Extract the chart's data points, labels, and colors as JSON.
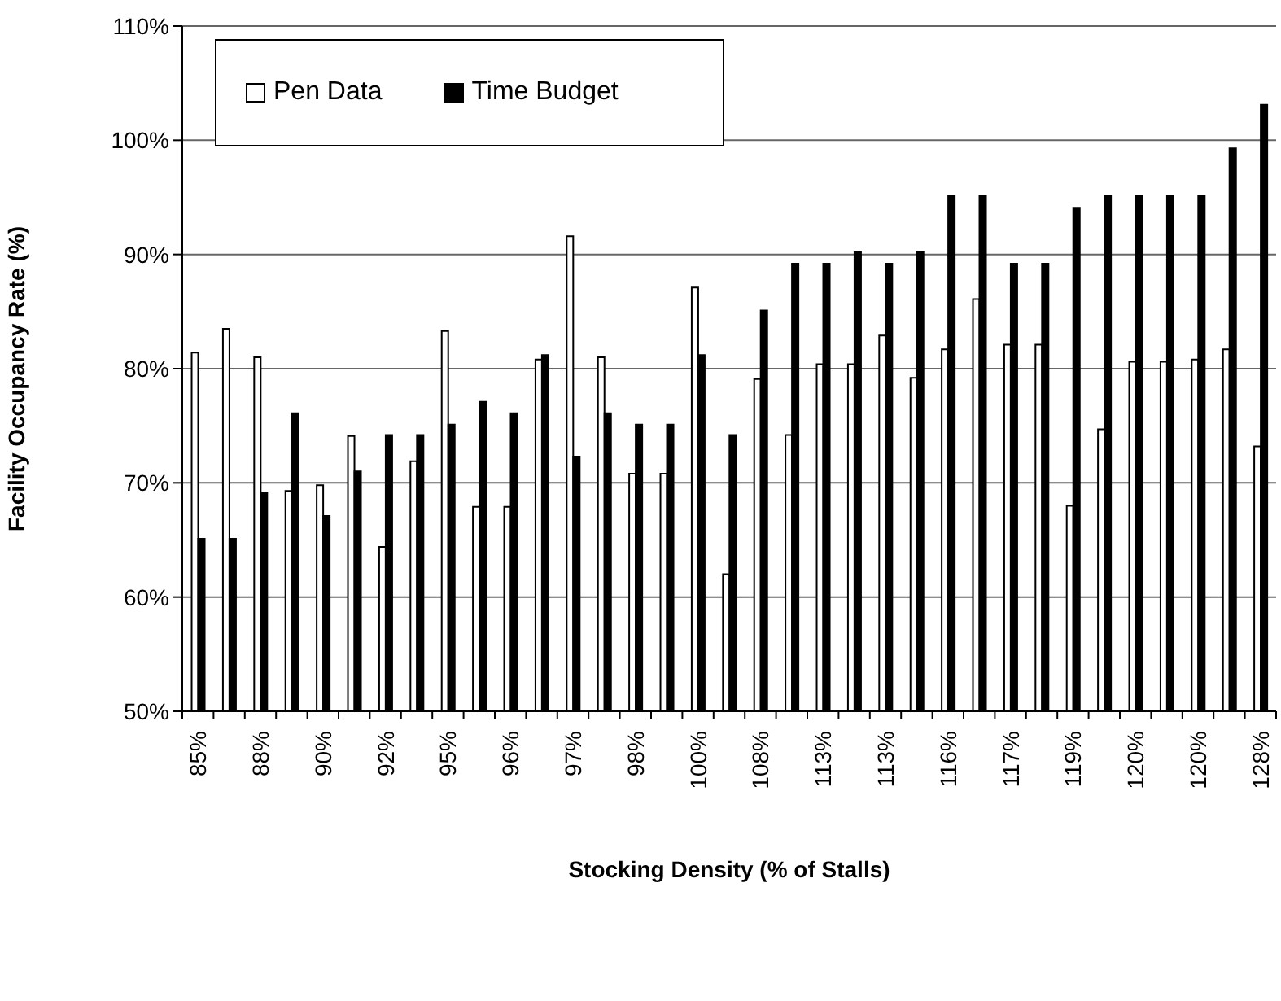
{
  "chart_data": {
    "type": "bar",
    "xlabel": "Stocking Density (% of Stalls)",
    "ylabel": "Facility Occupancy Rate (%)",
    "categories": [
      "85%",
      null,
      "88%",
      null,
      "90%",
      null,
      "92%",
      null,
      "95%",
      null,
      "96%",
      null,
      "97%",
      null,
      "98%",
      null,
      "100%",
      null,
      "108%",
      null,
      "113%",
      null,
      "113%",
      null,
      "116%",
      null,
      "117%",
      null,
      "119%",
      null,
      "120%",
      null,
      "120%",
      null,
      "128%"
    ],
    "series": [
      {
        "name": "Pen Data",
        "color": "#ffffff",
        "values": [
          81.4,
          83.5,
          81.0,
          69.3,
          69.8,
          74.1,
          64.4,
          71.9,
          83.3,
          67.9,
          67.9,
          80.8,
          91.6,
          81.0,
          70.8,
          70.8,
          87.1,
          62.0,
          79.1,
          74.2,
          80.4,
          80.4,
          82.9,
          79.2,
          81.7,
          86.1,
          82.1,
          82.1,
          68.0,
          74.7,
          80.6,
          80.6,
          80.8,
          81.7,
          73.2
        ]
      },
      {
        "name": "Time Budget",
        "color": "#000000",
        "values": [
          65.1,
          65.1,
          69.1,
          76.1,
          67.1,
          71.0,
          74.2,
          74.2,
          75.1,
          77.1,
          76.1,
          81.2,
          72.3,
          76.1,
          75.1,
          75.1,
          81.2,
          74.2,
          85.1,
          89.2,
          89.2,
          90.2,
          89.2,
          90.2,
          95.1,
          95.1,
          89.2,
          89.2,
          94.1,
          95.1,
          95.1,
          95.1,
          95.1,
          99.3,
          103.1
        ]
      }
    ],
    "ylim": [
      50,
      110
    ],
    "yticks": [
      {
        "value": 50,
        "label": "50%"
      },
      {
        "value": 60,
        "label": "60%"
      },
      {
        "value": 70,
        "label": "70%"
      },
      {
        "value": 80,
        "label": "80%"
      },
      {
        "value": 90,
        "label": "90%"
      },
      {
        "value": 100,
        "label": "100%"
      },
      {
        "value": 110,
        "label": "110%"
      }
    ],
    "grid": "y",
    "legend": "top left"
  }
}
